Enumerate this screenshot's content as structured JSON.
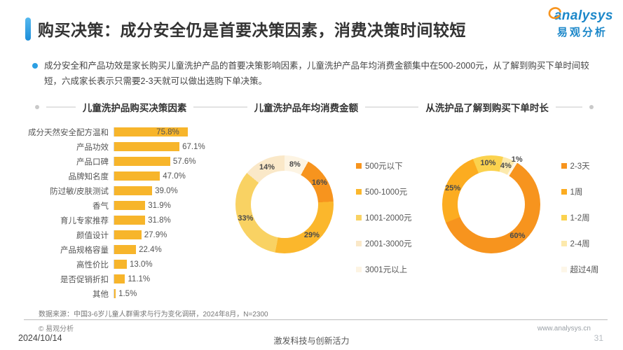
{
  "page": {
    "title": "购买决策：成分安全仍是首要决策因素，消费决策时间较短",
    "summary": "成分安全和产品功效是家长购买儿童洗护产品的首要决策影响因素，儿童洗护产品年均消费金额集中在500-2000元，从了解到购买下单时间较短，六成家长表示只需要2-3天就可以做出选购下单决策。",
    "logo": {
      "brand": "analysys",
      "brand_cn": "易观分析"
    },
    "source_note": "数据来源：中国3-6岁儿童人群需求与行为变化调研，2024年8月，N=2300",
    "footer": {
      "copyright": "© 易观分析",
      "website": "www.analysys.cn",
      "date": "2024/10/14",
      "slogan": "激发科技与创新活力",
      "page_number": "31"
    },
    "colors": {
      "accent_blue": "#2b9fe3",
      "bar_amber": "#F7B52B"
    }
  },
  "chart_data": [
    {
      "type": "bar",
      "orientation": "horizontal",
      "title": "儿童洗护品购买决策因素",
      "unit": "%",
      "xlim": [
        0,
        80
      ],
      "bar_color": "#F7B52B",
      "categories": [
        "成分天然安全配方温和",
        "产品功效",
        "产品口碑",
        "品牌知名度",
        "防过敏/皮肤测试",
        "香气",
        "育儿专家推荐",
        "颜值设计",
        "产品规格容量",
        "高性价比",
        "是否促销折扣",
        "其他"
      ],
      "values": [
        75.8,
        67.1,
        57.6,
        47.0,
        39.0,
        31.9,
        31.8,
        27.9,
        22.4,
        13.0,
        11.1,
        1.5
      ]
    },
    {
      "type": "pie",
      "subtype": "donut",
      "title": "儿童洗护品年均消费金额",
      "legend_position": "right",
      "rotation_deg": 29,
      "segments": [
        {
          "label": "500元以下",
          "value": 16,
          "color": "#F7941E"
        },
        {
          "label": "500-1000元",
          "value": 29,
          "color": "#FBB72C"
        },
        {
          "label": "1001-2000元",
          "value": 33,
          "color": "#F9D263"
        },
        {
          "label": "2001-3000元",
          "value": 14,
          "color": "#FAE8C8"
        },
        {
          "label": "3001元以上",
          "value": 8,
          "color": "#FDF4E3"
        }
      ]
    },
    {
      "type": "pie",
      "subtype": "donut",
      "title": "从洗护品了解到购买下单时长",
      "legend_position": "right",
      "rotation_deg": 32,
      "segments": [
        {
          "label": "2-3天",
          "value": 60,
          "color": "#F7941E"
        },
        {
          "label": "1周",
          "value": 25,
          "color": "#FCAC20"
        },
        {
          "label": "1-2周",
          "value": 10,
          "color": "#FBD24E"
        },
        {
          "label": "2-4周",
          "value": 4,
          "color": "#FCE9AC"
        },
        {
          "label": "超过4周",
          "value": 1,
          "color": "#FDF6E8"
        }
      ]
    }
  ]
}
